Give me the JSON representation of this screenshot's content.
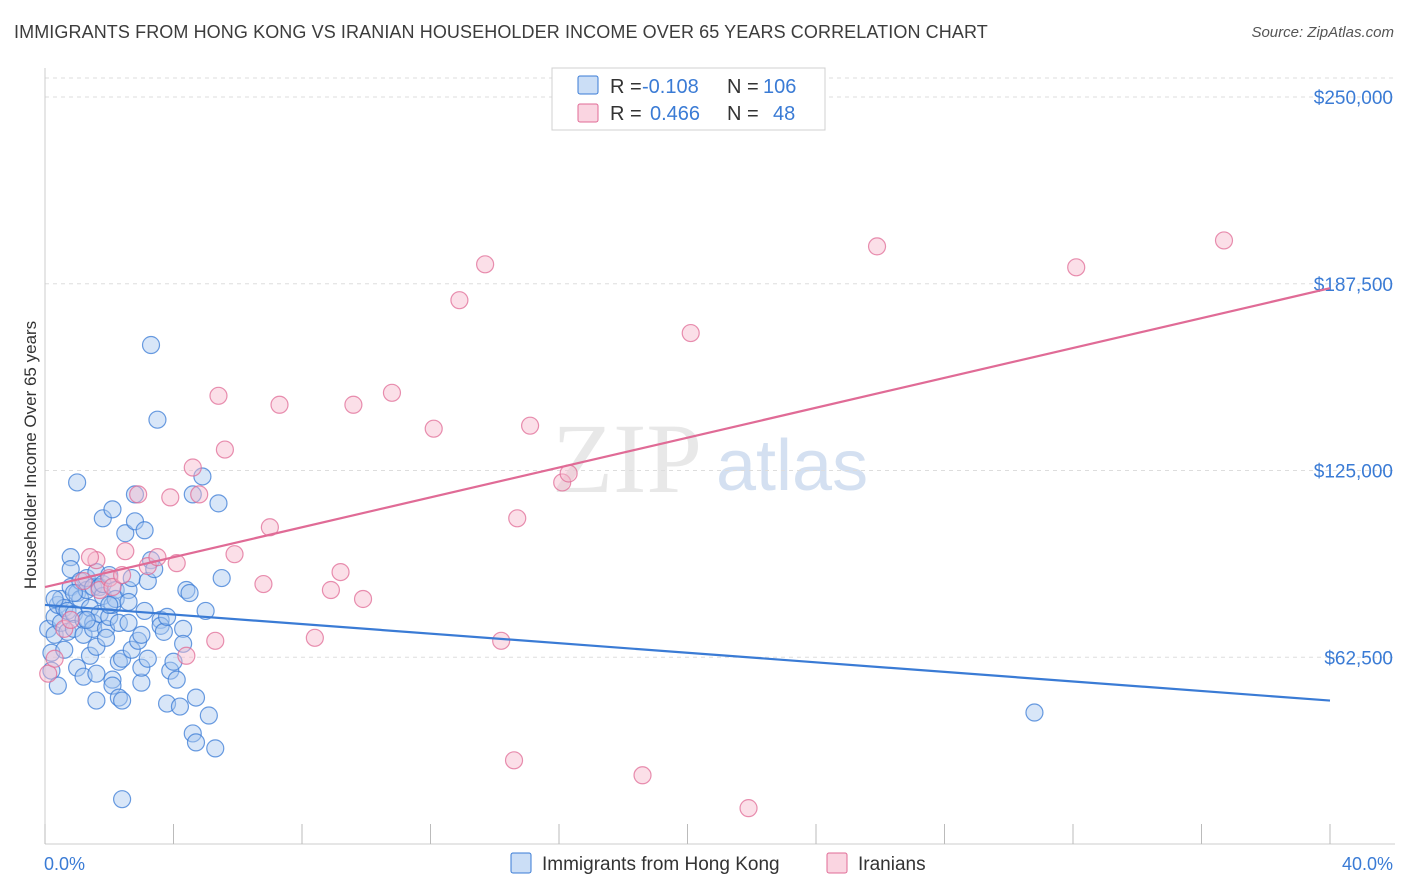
{
  "title": "IMMIGRANTS FROM HONG KONG VS IRANIAN HOUSEHOLDER INCOME OVER 65 YEARS CORRELATION CHART",
  "source": "Source: ZipAtlas.com",
  "watermark": {
    "zip": "ZIP",
    "atlas": "atlas"
  },
  "colors": {
    "blue": "#3a7bd5",
    "blue_fill": "#a9c8f0",
    "pink": "#e06b96",
    "pink_fill": "#f6b9cd",
    "grid": "#dddddd"
  },
  "legend": {
    "rows": [
      {
        "r_label": "R =",
        "r_value": "-0.108",
        "n_label": "N =",
        "n_value": "106"
      },
      {
        "r_label": "R =",
        "r_value": "0.466",
        "n_label": "N =",
        "n_value": "48"
      }
    ]
  },
  "chart_data": {
    "type": "scatter",
    "title": "IMMIGRANTS FROM HONG KONG VS IRANIAN HOUSEHOLDER INCOME OVER 65 YEARS CORRELATION CHART",
    "xlabel": "",
    "ylabel": "Householder Income Over 65 years",
    "xlim": [
      0,
      40
    ],
    "ylim": [
      0,
      262500
    ],
    "x_tick_labels": [
      "0.0%",
      "40.0%"
    ],
    "y_ticks": [
      62500,
      125000,
      187500,
      250000
    ],
    "y_tick_labels": [
      "$62,500",
      "$125,000",
      "$187,500",
      "$250,000"
    ],
    "grid": true,
    "series": [
      {
        "name": "Immigrants from Hong Kong",
        "color": "#3a7bd5",
        "trend": {
          "x": [
            0,
            40
          ],
          "y": [
            80000,
            48000
          ]
        },
        "points": [
          [
            0.1,
            72000
          ],
          [
            0.2,
            64000
          ],
          [
            0.2,
            58000
          ],
          [
            0.3,
            76000
          ],
          [
            0.3,
            70000
          ],
          [
            0.4,
            80000
          ],
          [
            0.4,
            53000
          ],
          [
            0.5,
            82000
          ],
          [
            0.5,
            74000
          ],
          [
            0.6,
            79000
          ],
          [
            0.7,
            78000
          ],
          [
            0.7,
            71000
          ],
          [
            0.8,
            96000
          ],
          [
            0.8,
            92000
          ],
          [
            0.8,
            86000
          ],
          [
            0.9,
            77000
          ],
          [
            0.9,
            72000
          ],
          [
            1.0,
            59000
          ],
          [
            1.0,
            84000
          ],
          [
            1.0,
            121000
          ],
          [
            1.1,
            88000
          ],
          [
            1.1,
            82000
          ],
          [
            1.2,
            75000
          ],
          [
            1.2,
            70000
          ],
          [
            1.2,
            56000
          ],
          [
            1.3,
            85000
          ],
          [
            1.3,
            89000
          ],
          [
            1.4,
            63000
          ],
          [
            1.4,
            79000
          ],
          [
            1.5,
            86000
          ],
          [
            1.5,
            74000
          ],
          [
            1.5,
            72000
          ],
          [
            1.6,
            91000
          ],
          [
            1.6,
            66000
          ],
          [
            1.6,
            48000
          ],
          [
            1.7,
            86000
          ],
          [
            1.7,
            77000
          ],
          [
            1.8,
            83000
          ],
          [
            1.8,
            87000
          ],
          [
            1.8,
            109000
          ],
          [
            1.9,
            72000
          ],
          [
            1.9,
            69000
          ],
          [
            2.0,
            90000
          ],
          [
            2.0,
            76000
          ],
          [
            2.1,
            55000
          ],
          [
            2.1,
            53000
          ],
          [
            2.1,
            80000
          ],
          [
            2.1,
            112000
          ],
          [
            2.2,
            85000
          ],
          [
            2.2,
            82000
          ],
          [
            2.3,
            74000
          ],
          [
            2.3,
            61000
          ],
          [
            2.3,
            49000
          ],
          [
            2.4,
            48000
          ],
          [
            2.4,
            62000
          ],
          [
            2.4,
            15000
          ],
          [
            2.5,
            104000
          ],
          [
            2.6,
            85000
          ],
          [
            2.6,
            74000
          ],
          [
            2.7,
            89000
          ],
          [
            2.7,
            65000
          ],
          [
            2.8,
            108000
          ],
          [
            2.8,
            117000
          ],
          [
            2.9,
            68000
          ],
          [
            3.0,
            54000
          ],
          [
            3.0,
            59000
          ],
          [
            3.1,
            78000
          ],
          [
            3.1,
            105000
          ],
          [
            3.2,
            62000
          ],
          [
            3.2,
            88000
          ],
          [
            3.3,
            167000
          ],
          [
            3.3,
            95000
          ],
          [
            3.4,
            92000
          ],
          [
            3.5,
            142000
          ],
          [
            3.6,
            75000
          ],
          [
            3.6,
            73000
          ],
          [
            3.7,
            71000
          ],
          [
            3.8,
            76000
          ],
          [
            3.8,
            47000
          ],
          [
            3.9,
            58000
          ],
          [
            4.0,
            61000
          ],
          [
            4.1,
            55000
          ],
          [
            4.2,
            46000
          ],
          [
            4.3,
            72000
          ],
          [
            4.3,
            67000
          ],
          [
            4.4,
            85000
          ],
          [
            4.5,
            84000
          ],
          [
            4.6,
            117000
          ],
          [
            4.6,
            37000
          ],
          [
            4.7,
            34000
          ],
          [
            4.7,
            49000
          ],
          [
            4.9,
            123000
          ],
          [
            5.0,
            78000
          ],
          [
            5.1,
            43000
          ],
          [
            5.3,
            32000
          ],
          [
            5.4,
            114000
          ],
          [
            5.5,
            89000
          ],
          [
            30.8,
            44000
          ],
          [
            0.3,
            82000
          ],
          [
            0.6,
            65000
          ],
          [
            1.3,
            75000
          ],
          [
            2.0,
            80000
          ],
          [
            2.6,
            81000
          ],
          [
            3.0,
            70000
          ],
          [
            0.9,
            84000
          ],
          [
            1.6,
            57000
          ]
        ]
      },
      {
        "name": "Iranians",
        "color": "#e06b96",
        "trend": {
          "x": [
            0,
            40
          ],
          "y": [
            86000,
            186000
          ]
        },
        "points": [
          [
            0.1,
            57000
          ],
          [
            0.3,
            62000
          ],
          [
            0.6,
            72000
          ],
          [
            1.2,
            88000
          ],
          [
            1.6,
            95000
          ],
          [
            1.7,
            85000
          ],
          [
            2.0,
            89000
          ],
          [
            2.1,
            86000
          ],
          [
            2.5,
            98000
          ],
          [
            2.9,
            117000
          ],
          [
            3.2,
            93000
          ],
          [
            3.5,
            96000
          ],
          [
            3.9,
            116000
          ],
          [
            4.1,
            94000
          ],
          [
            4.4,
            63000
          ],
          [
            4.6,
            126000
          ],
          [
            4.8,
            117000
          ],
          [
            5.3,
            68000
          ],
          [
            5.4,
            150000
          ],
          [
            5.6,
            132000
          ],
          [
            5.9,
            97000
          ],
          [
            6.8,
            87000
          ],
          [
            7.0,
            106000
          ],
          [
            7.3,
            147000
          ],
          [
            8.4,
            69000
          ],
          [
            8.9,
            85000
          ],
          [
            9.2,
            91000
          ],
          [
            9.6,
            147000
          ],
          [
            9.9,
            82000
          ],
          [
            10.8,
            151000
          ],
          [
            12.1,
            139000
          ],
          [
            12.9,
            182000
          ],
          [
            13.7,
            194000
          ],
          [
            14.2,
            68000
          ],
          [
            14.6,
            28000
          ],
          [
            14.7,
            109000
          ],
          [
            15.1,
            140000
          ],
          [
            16.1,
            121000
          ],
          [
            16.3,
            124000
          ],
          [
            18.6,
            23000
          ],
          [
            20.1,
            171000
          ],
          [
            21.9,
            12000
          ],
          [
            25.9,
            200000
          ],
          [
            32.1,
            193000
          ],
          [
            36.7,
            202000
          ],
          [
            1.4,
            96000
          ],
          [
            2.4,
            90000
          ],
          [
            0.8,
            75000
          ]
        ]
      }
    ]
  }
}
